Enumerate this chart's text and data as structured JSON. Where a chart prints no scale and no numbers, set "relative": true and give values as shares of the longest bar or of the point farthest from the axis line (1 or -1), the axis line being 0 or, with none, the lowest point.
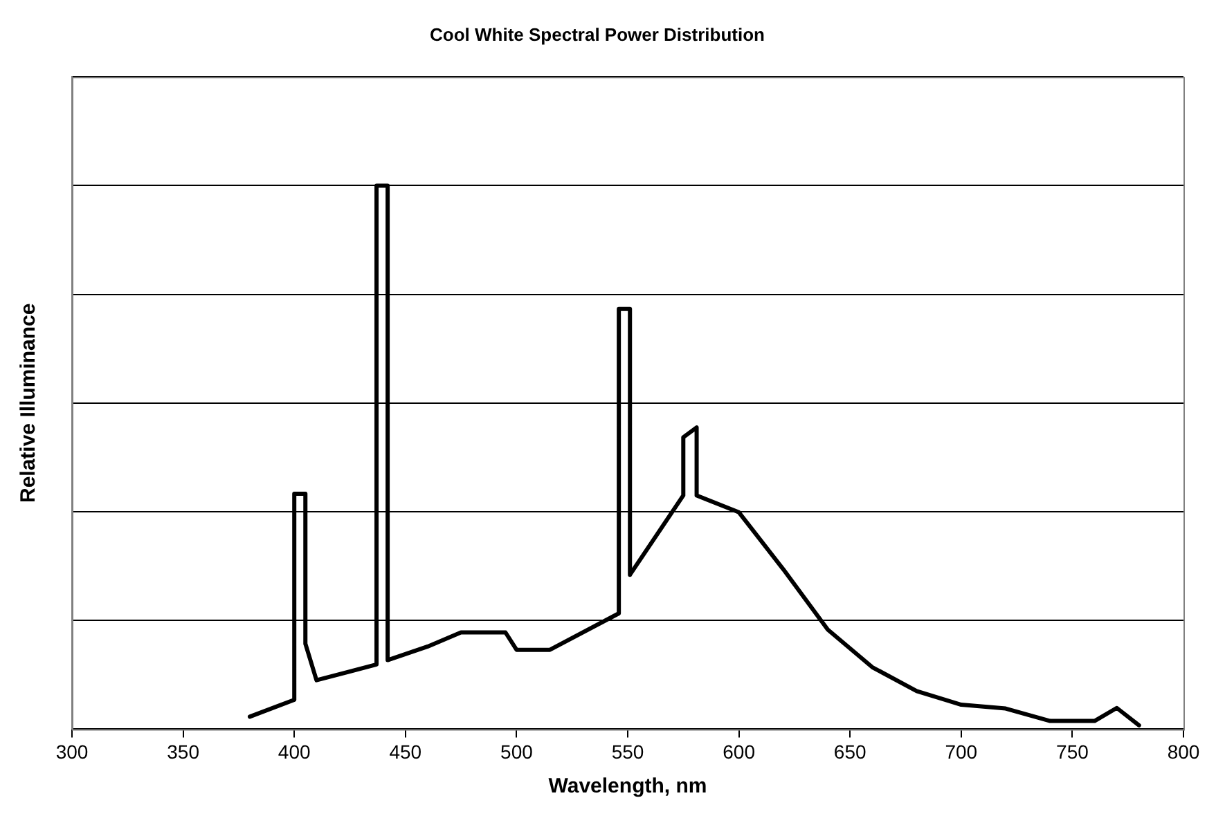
{
  "chart_data": {
    "type": "line",
    "title": "Cool White Spectral Power Distribution",
    "xlabel": "Wavelength, nm",
    "ylabel": "Relative Illuminance",
    "relative": true,
    "grid": "y",
    "legend": false,
    "marker": "none",
    "line_style": "solid",
    "xlim": [
      300,
      800
    ],
    "xticks": [
      300,
      350,
      400,
      450,
      500,
      550,
      600,
      650,
      700,
      750,
      800
    ],
    "series": [
      {
        "color": "#000000",
        "x": [
          380,
          400,
          400,
          405,
          405,
          410,
          437,
          437,
          442,
          442,
          460,
          475,
          495,
          500,
          515,
          546,
          546,
          551,
          551,
          575,
          575,
          581,
          581,
          600,
          620,
          640,
          660,
          680,
          700,
          720,
          740,
          760,
          770,
          780
        ],
        "values": [
          0.023,
          0.054,
          0.433,
          0.433,
          0.157,
          0.09,
          0.119,
          1,
          1,
          0.127,
          0.152,
          0.178,
          0.178,
          0.146,
          0.146,
          0.213,
          0.773,
          0.773,
          0.284,
          0.43,
          0.537,
          0.555,
          0.43,
          0.399,
          0.294,
          0.183,
          0.114,
          0.07,
          0.045,
          0.038,
          0.015,
          0.015,
          0.039,
          0.007
        ]
      }
    ]
  }
}
